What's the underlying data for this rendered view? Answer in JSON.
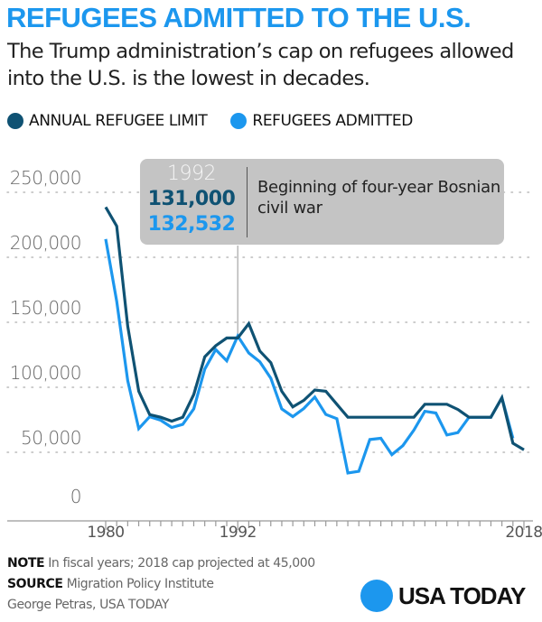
{
  "header": {
    "title": "REFUGEES ADMITTED TO THE U.S.",
    "subtitle": "The Trump administration’s cap on refugees allowed into the U.S. is the lowest in decades."
  },
  "colors": {
    "title": "#1c97ee",
    "limit": "#0f5273",
    "admitted": "#1c97ee",
    "callout_bg": "#c4c4c4"
  },
  "callout": {
    "year": "1992",
    "limit_value": "131,000",
    "admitted_value": "132,532",
    "text": "Beginning of four-year Bosnian civil war"
  },
  "footer": {
    "note_label": "NOTE",
    "note_text": "In fiscal years; 2018 cap projected at 45,000",
    "source_label": "SOURCE",
    "source_text": "Migration Policy Institute",
    "credit": "George Petras, USA TODAY",
    "brand": "USA TODAY"
  },
  "chart_data": {
    "type": "line",
    "title": "REFUGEES ADMITTED TO THE U.S.",
    "xlabel": "",
    "ylabel": "",
    "xlim": [
      1980,
      2018
    ],
    "ylim": [
      0,
      250000
    ],
    "grid": true,
    "legend_position": "top-left",
    "x_tick_labels": [
      "1980",
      "1992",
      "2018"
    ],
    "y_tick_labels": [
      "0",
      "50,000",
      "100,000",
      "150,000",
      "200,000",
      "250,000"
    ],
    "y_ticks": [
      0,
      50000,
      100000,
      150000,
      200000,
      250000
    ],
    "series": [
      {
        "name": "ANNUAL REFUGEE LIMIT",
        "color": "#0f5273",
        "x": [
          1980,
          1981,
          1982,
          1983,
          1984,
          1985,
          1986,
          1987,
          1988,
          1989,
          1990,
          1991,
          1992,
          1993,
          1994,
          1995,
          1996,
          1997,
          1998,
          1999,
          2000,
          2001,
          2002,
          2003,
          2004,
          2005,
          2006,
          2007,
          2008,
          2009,
          2010,
          2011,
          2012,
          2013,
          2014,
          2015,
          2016,
          2017,
          2018
        ],
        "values": [
          231700,
          217000,
          140000,
          90000,
          72000,
          70000,
          67000,
          70000,
          87500,
          116500,
          125000,
          131000,
          131000,
          142000,
          121000,
          112000,
          90000,
          78000,
          83000,
          91000,
          90000,
          80000,
          70000,
          70000,
          70000,
          70000,
          70000,
          70000,
          70000,
          80000,
          80000,
          80000,
          76000,
          70000,
          70000,
          70000,
          85000,
          50000,
          45000
        ]
      },
      {
        "name": "REFUGEES ADMITTED",
        "color": "#1c97ee",
        "x": [
          1980,
          1981,
          1982,
          1983,
          1984,
          1985,
          1986,
          1987,
          1988,
          1989,
          1990,
          1991,
          1992,
          1993,
          1994,
          1995,
          1996,
          1997,
          1998,
          1999,
          2000,
          2001,
          2002,
          2003,
          2004,
          2005,
          2006,
          2007,
          2008,
          2009,
          2010,
          2011,
          2012,
          2013,
          2014,
          2015,
          2016,
          2017
        ],
        "values": [
          207116,
          159252,
          98096,
          61218,
          70393,
          67704,
          62146,
          64528,
          76483,
          107070,
          122066,
          113389,
          132532,
          119448,
          112682,
          99974,
          76403,
          70488,
          76712,
          85525,
          72165,
          68920,
          27131,
          28422,
          52868,
          53813,
          41277,
          48218,
          60107,
          74602,
          73293,
          56384,
          58179,
          69909,
          69933,
          69920,
          84989,
          53716
        ]
      }
    ],
    "annotation": {
      "x": 1992,
      "year": "1992",
      "limit": "131,000",
      "admitted": "132,532",
      "text": "Beginning of four-year Bosnian civil war"
    }
  }
}
